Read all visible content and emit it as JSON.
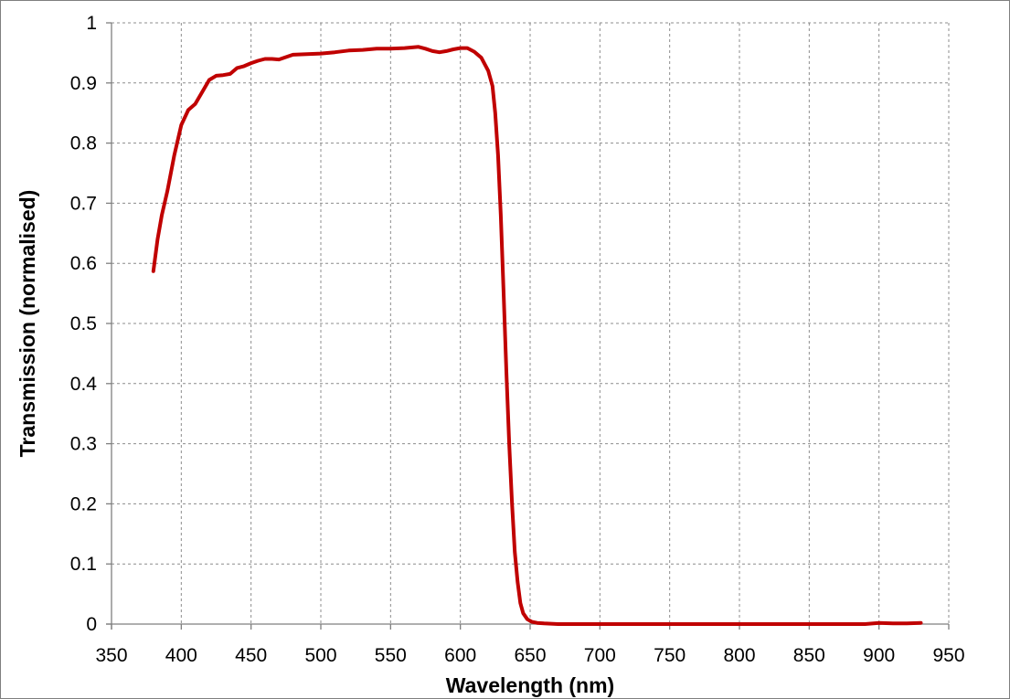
{
  "chart_data": {
    "type": "line",
    "title": "",
    "xlabel": "Wavelength (nm)",
    "ylabel": "Transmission (normalised)",
    "xlim": [
      350,
      950
    ],
    "ylim": [
      0,
      1
    ],
    "xticks": [
      350,
      400,
      450,
      500,
      550,
      600,
      650,
      700,
      750,
      800,
      850,
      900,
      950
    ],
    "yticks": [
      0,
      0.1,
      0.2,
      0.3,
      0.4,
      0.5,
      0.6,
      0.7,
      0.8,
      0.9,
      1
    ],
    "ytick_labels": [
      "0",
      "0.1",
      "0.2",
      "0.3",
      "0.4",
      "0.5",
      "0.6",
      "0.7",
      "0.8",
      "0.9",
      "1"
    ],
    "grid": true,
    "legend": "none",
    "series": [
      {
        "color": "#c00000",
        "x": [
          380,
          383,
          386,
          390,
          395,
          400,
          405,
          410,
          415,
          420,
          425,
          430,
          435,
          440,
          445,
          450,
          455,
          460,
          465,
          470,
          475,
          480,
          490,
          500,
          510,
          520,
          530,
          540,
          550,
          560,
          570,
          575,
          580,
          585,
          590,
          595,
          600,
          605,
          610,
          615,
          620,
          623,
          625,
          627,
          629,
          631,
          633,
          635,
          637,
          639,
          641,
          643,
          645,
          648,
          651,
          655,
          660,
          670,
          680,
          700,
          750,
          800,
          850,
          890,
          900,
          910,
          920,
          930
        ],
        "y": [
          0.587,
          0.64,
          0.68,
          0.72,
          0.78,
          0.83,
          0.855,
          0.865,
          0.885,
          0.905,
          0.912,
          0.913,
          0.915,
          0.925,
          0.928,
          0.933,
          0.937,
          0.94,
          0.94,
          0.939,
          0.943,
          0.947,
          0.948,
          0.949,
          0.951,
          0.954,
          0.955,
          0.957,
          0.957,
          0.958,
          0.96,
          0.957,
          0.953,
          0.951,
          0.953,
          0.956,
          0.958,
          0.958,
          0.952,
          0.942,
          0.92,
          0.895,
          0.85,
          0.78,
          0.68,
          0.55,
          0.42,
          0.3,
          0.2,
          0.12,
          0.07,
          0.035,
          0.018,
          0.008,
          0.004,
          0.002,
          0.001,
          0.0,
          0.0,
          0.0,
          0.0,
          0.0,
          0.0,
          0.0,
          0.002,
          0.001,
          0.001,
          0.002
        ]
      }
    ]
  }
}
